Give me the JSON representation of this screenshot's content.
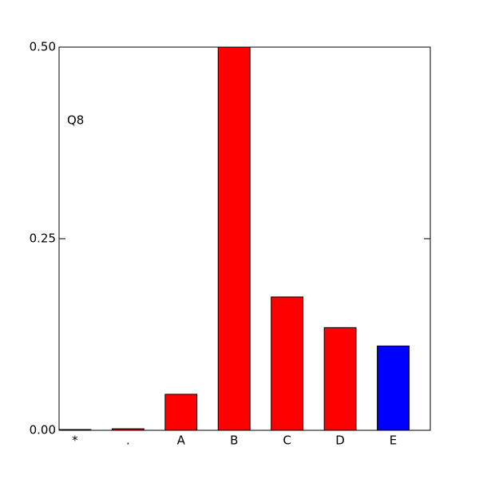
{
  "chart_data": {
    "type": "bar",
    "annotations": [
      "Q8"
    ],
    "categories": [
      "*",
      ".",
      "A",
      "B",
      "C",
      "D",
      "E"
    ],
    "values": [
      0.001,
      0.002,
      0.047,
      0.5,
      0.174,
      0.134,
      0.11
    ],
    "colors": [
      "#ff0000",
      "#ff0000",
      "#ff0000",
      "#ff0000",
      "#ff0000",
      "#ff0000",
      "#0000ff"
    ],
    "ylim": [
      0,
      0.5
    ],
    "yticks": [
      {
        "value": 0,
        "label": "0.00"
      },
      {
        "value": 0.25,
        "label": "0.25"
      },
      {
        "value": 0.5,
        "label": "0.50"
      }
    ],
    "grid": false
  }
}
